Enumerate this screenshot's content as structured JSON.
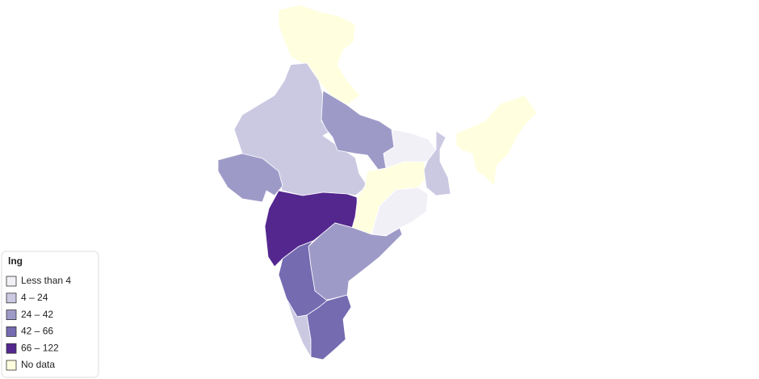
{
  "legend": {
    "title": "lng",
    "items": [
      {
        "label": "Less than 4",
        "color": "#f2f0f7"
      },
      {
        "label": "4 – 24",
        "color": "#cbc9e2"
      },
      {
        "label": "24 – 42",
        "color": "#9e9ac8"
      },
      {
        "label": "42 – 66",
        "color": "#756bb1"
      },
      {
        "label": "66 – 122",
        "color": "#54278f"
      },
      {
        "label": "No data",
        "color": "#ffffe0"
      }
    ]
  }
}
